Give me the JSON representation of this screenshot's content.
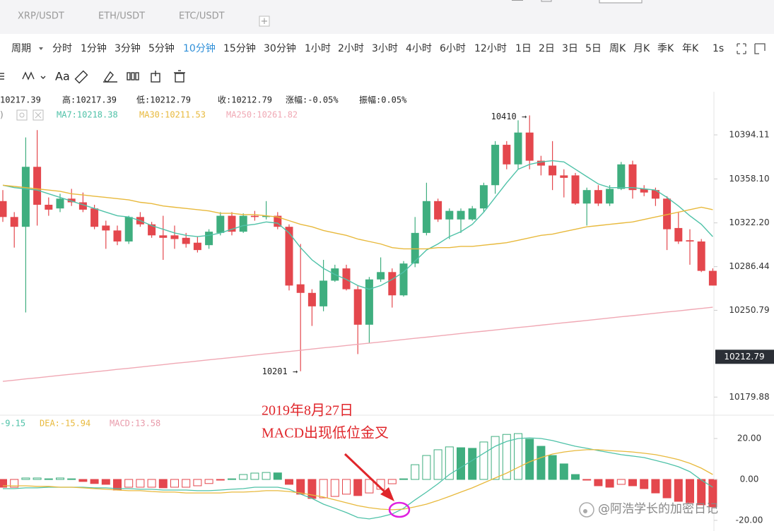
{
  "tabs": [
    "XRP/USDT",
    "ETH/USDT",
    "ETC/USDT"
  ],
  "periods": {
    "selector": "周期",
    "items": [
      "分时",
      "1分钟",
      "3分钟",
      "5分钟",
      "10分钟",
      "15分钟",
      "30分钟",
      "1小时",
      "2小时",
      "3小时",
      "4小时",
      "6小时",
      "12小时",
      "1日",
      "2日",
      "3日",
      "5日",
      "周K",
      "月K",
      "季K",
      "年K",
      "1s"
    ],
    "active": 4
  },
  "toolbar": {
    "font_button": "Aa"
  },
  "info_bar": [
    "10217.39",
    "高:10217.39",
    "低:10212.79",
    "收:10212.79",
    "涨幅:-0.05%",
    "振幅:0.05%"
  ],
  "chart_data": [
    {
      "type": "candlestick",
      "up_color": "#3fae7f",
      "down_color": "#e4474d",
      "open": [
        10340,
        10327,
        10319,
        10368,
        10337,
        10334,
        10342,
        10339,
        10334,
        10320,
        10316,
        10307,
        10327,
        10321,
        10312,
        10312,
        10310,
        10306,
        10304,
        10314,
        10328,
        10315,
        10328,
        10327,
        10328,
        10319,
        10272,
        10265,
        10254,
        10275,
        10285,
        10268,
        10239,
        10276,
        10282,
        10263,
        10289,
        10314,
        10340,
        10325,
        10325,
        10325,
        10334,
        10353,
        10386,
        10370,
        10396,
        10373,
        10369,
        10361,
        10361,
        10338,
        10349,
        10338,
        10350,
        10370,
        10350,
        10349,
        10342,
        10318,
        10308,
        10307,
        10283
      ],
      "high": [
        10349,
        10331,
        10392,
        10398,
        10343,
        10346,
        10350,
        10347,
        10337,
        10324,
        10320,
        10328,
        10331,
        10323,
        10328,
        10320,
        10314,
        10311,
        10317,
        10331,
        10331,
        10330,
        10332,
        10340,
        10331,
        10321,
        10305,
        10268,
        10292,
        10288,
        10288,
        10271,
        10278,
        10294,
        10285,
        10291,
        10327,
        10355,
        10342,
        10334,
        10334,
        10336,
        10355,
        10389,
        10389,
        10406,
        10410,
        10377,
        10389,
        10366,
        10363,
        10351,
        10353,
        10353,
        10372,
        10373,
        10353,
        10351,
        10344,
        10331,
        10317,
        10309,
        10285
      ],
      "low": [
        10323,
        10302,
        10249,
        10320,
        10328,
        10331,
        10336,
        10331,
        10317,
        10301,
        10304,
        10305,
        10319,
        10310,
        10292,
        10301,
        10302,
        10298,
        10301,
        10312,
        10312,
        10314,
        10324,
        10325,
        10317,
        10267,
        10201,
        10238,
        10250,
        10274,
        10267,
        10215,
        10224,
        10274,
        10253,
        10262,
        10286,
        10312,
        10323,
        10309,
        10314,
        10324,
        10331,
        10346,
        10366,
        10366,
        10366,
        10361,
        10349,
        10343,
        10337,
        10320,
        10336,
        10336,
        10349,
        10342,
        10344,
        10336,
        10300,
        10305,
        10288,
        10282,
        10271
      ],
      "close": [
        10327,
        10319,
        10368,
        10337,
        10333,
        10342,
        10339,
        10333,
        10319,
        10316,
        10307,
        10327,
        10321,
        10312,
        10310,
        10309,
        10305,
        10300,
        10315,
        10328,
        10315,
        10328,
        10327,
        10328,
        10319,
        10271,
        10265,
        10254,
        10275,
        10285,
        10268,
        10239,
        10276,
        10282,
        10263,
        10289,
        10314,
        10340,
        10325,
        10332,
        10332,
        10334,
        10353,
        10386,
        10370,
        10396,
        10373,
        10369,
        10361,
        10359,
        10338,
        10349,
        10338,
        10350,
        10370,
        10349,
        10347,
        10342,
        10317,
        10307,
        10307,
        10283,
        10271
      ],
      "series": [
        {
          "name": "MA7:10218.38",
          "color": "#4fc2a8",
          "values": [
            10353,
            10351,
            10350,
            10349,
            10346,
            10343,
            10340,
            10337,
            10334,
            10331,
            10328,
            10327,
            10324,
            10320,
            10317,
            10314,
            10312,
            10311,
            10312,
            10314,
            10317,
            10320,
            10321,
            10323,
            10322,
            10314,
            10302,
            10292,
            10285,
            10280,
            10276,
            10271,
            10268,
            10271,
            10276,
            10282,
            10291,
            10300,
            10305,
            10311,
            10315,
            10321,
            10331,
            10343,
            10355,
            10366,
            10370,
            10372,
            10373,
            10372,
            10366,
            10360,
            10354,
            10351,
            10351,
            10351,
            10350,
            10349,
            10343,
            10336,
            10328,
            10321,
            10311
          ]
        },
        {
          "name": "MA30:10211.53",
          "color": "#e8b93c",
          "values": [
            10353,
            10352,
            10351,
            10350,
            10349,
            10348,
            10346,
            10345,
            10344,
            10343,
            10342,
            10341,
            10339,
            10338,
            10336,
            10335,
            10334,
            10333,
            10332,
            10330,
            10330,
            10329,
            10329,
            10328,
            10327,
            10324,
            10321,
            10319,
            10316,
            10314,
            10312,
            10309,
            10307,
            10305,
            10302,
            10301,
            10301,
            10301,
            10302,
            10302,
            10303,
            10303,
            10304,
            10305,
            10306,
            10308,
            10310,
            10312,
            10313,
            10315,
            10317,
            10319,
            10320,
            10321,
            10322,
            10323,
            10325,
            10327,
            10329,
            10331,
            10333,
            10335,
            10333
          ]
        },
        {
          "name": "MA250:10261.82",
          "color": "#f0a8b4",
          "values": [
            10192.7,
            10193.7,
            10194.7,
            10195.6,
            10196.6,
            10197.6,
            10198.6,
            10199.5,
            10200.5,
            10201.5,
            10202.5,
            10203.4,
            10204.4,
            10205.4,
            10206.4,
            10207.4,
            10208.3,
            10209.3,
            10210.3,
            10211.3,
            10212.2,
            10213.2,
            10214.2,
            10215.2,
            10216.1,
            10217.1,
            10218.1,
            10219.1,
            10220.1,
            10221.0,
            10222.0,
            10223.0,
            10224.0,
            10224.9,
            10225.9,
            10226.9,
            10227.9,
            10228.8,
            10229.8,
            10230.8,
            10231.8,
            10232.8,
            10233.7,
            10234.7,
            10235.7,
            10236.7,
            10237.6,
            10238.6,
            10239.6,
            10240.6,
            10241.5,
            10242.5,
            10243.5,
            10244.5,
            10245.5,
            10246.4,
            10247.4,
            10248.4,
            10249.4,
            10250.3,
            10251.3,
            10252.3,
            10253.3
          ]
        }
      ],
      "ylim": [
        10166.8,
        10429.3
      ],
      "yticks": [
        10394.11,
        {
          "value": 10358.1,
          "label": "10358.10"
        },
        {
          "value": 10322.2,
          "label": "10322.20"
        },
        10286.44,
        10250.79,
        10179.88
      ],
      "last_price": 10212.79,
      "high_label": "10410 →",
      "low_label": "10201 →"
    },
    {
      "type": "macd",
      "values_name": "MACD:13.58",
      "values_name_color": "#e89aaa",
      "up_color": "#3fae7f",
      "down_color": "#e4474d",
      "values": [
        -3.8,
        -3.8,
        0.7,
        0.7,
        0.3,
        0.7,
        0.3,
        -1,
        -2,
        -2.4,
        -5.2,
        -3.8,
        -3.8,
        -3.8,
        -4.1,
        -3.8,
        -3.8,
        -3.1,
        -2,
        -0.3,
        0.3,
        2.4,
        3.1,
        3.4,
        3.2,
        -2.4,
        -7.2,
        -9.3,
        -9,
        -8.3,
        -7.2,
        -7.9,
        -6.6,
        -4.8,
        -2.1,
        0.3,
        7.2,
        11.7,
        14.5,
        15.9,
        15.5,
        15.2,
        18.3,
        21,
        22,
        22.4,
        19.7,
        16.2,
        11.7,
        7.6,
        2.4,
        -0.3,
        -3.1,
        -3.8,
        -2.4,
        -3.1,
        -4.5,
        -6.6,
        -9,
        -10.7,
        -11.4,
        -12.4,
        -13.4
      ],
      "series": [
        {
          "name": "-9.15",
          "color": "#4fc2a8",
          "values": [
            -4.5,
            -4.5,
            -4.1,
            -4.1,
            -3.8,
            -3.8,
            -3.8,
            -3.8,
            -4.1,
            -4.1,
            -4.5,
            -4.5,
            -4.8,
            -4.8,
            -5.2,
            -5.2,
            -5.2,
            -5.5,
            -5.5,
            -5.2,
            -4.8,
            -4.5,
            -3.8,
            -3.8,
            -3.8,
            -4.8,
            -7.2,
            -9.3,
            -12.1,
            -14.1,
            -16.2,
            -18.6,
            -19.3,
            -18.3,
            -16.9,
            -14.1,
            -10,
            -6.2,
            -2.1,
            2.4,
            5.9,
            9.3,
            12.8,
            16.2,
            18.6,
            20,
            20.3,
            20,
            19,
            17.6,
            16.2,
            15.2,
            14.1,
            13.1,
            12.1,
            11.4,
            10.7,
            9.3,
            7.9,
            6.2,
            3.8,
            -0.3,
            -3.8
          ]
        },
        {
          "name": "DEA:-15.94",
          "color": "#e8b93c",
          "values": [
            -3.1,
            -3.1,
            -3.1,
            -3.4,
            -3.4,
            -3.8,
            -3.8,
            -4.1,
            -4.5,
            -4.8,
            -5.2,
            -5.5,
            -5.5,
            -5.9,
            -6.2,
            -6.2,
            -6.6,
            -6.6,
            -6.6,
            -6.6,
            -6.2,
            -6.2,
            -5.9,
            -5.5,
            -5.5,
            -5.9,
            -6.6,
            -7.6,
            -8.6,
            -10,
            -11.4,
            -12.8,
            -13.8,
            -14.5,
            -14.8,
            -14.5,
            -13.4,
            -12.1,
            -10.3,
            -8.3,
            -6.2,
            -4.1,
            -1.7,
            0.7,
            3.1,
            5.9,
            8.6,
            10.7,
            12.4,
            13.4,
            14.1,
            14.5,
            14.5,
            14.1,
            13.8,
            13.4,
            12.8,
            12.1,
            11,
            9.7,
            7.9,
            5.5,
            2.4
          ]
        }
      ],
      "ylim": [
        -25.2,
        30.7
      ],
      "yticks": [
        {
          "value": 20,
          "label": "20.00"
        },
        {
          "value": 0,
          "label": "0.00"
        },
        {
          "value": -20,
          "label": "-20.00"
        }
      ]
    }
  ],
  "annotation": {
    "date": "2019年8月27日",
    "text": "MACD出现低位金叉"
  },
  "watermark": "@阿浩学长的加密日记"
}
